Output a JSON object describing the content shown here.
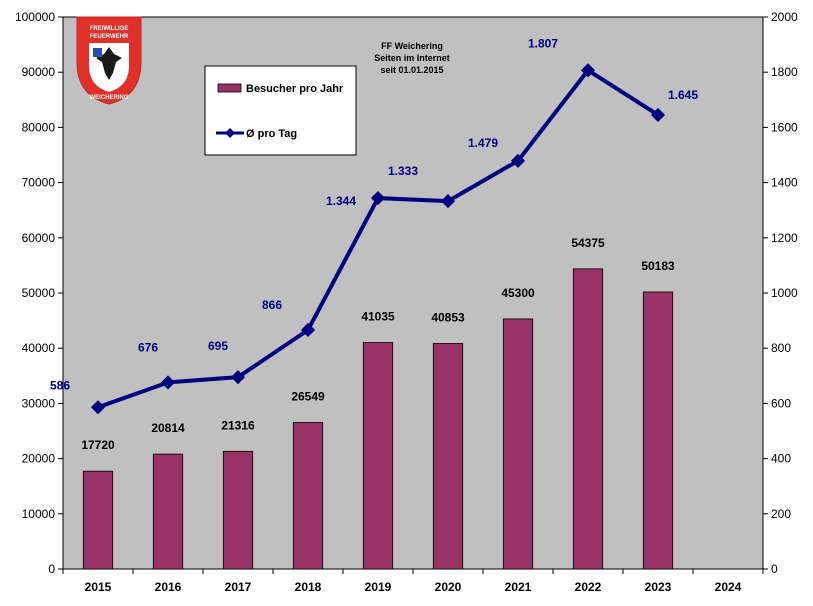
{
  "chart_data": {
    "type": "bar",
    "title_lines": [
      "FF Weichering",
      "Seiten im Internet",
      "seit 01.01.2015"
    ],
    "categories": [
      "2015",
      "2016",
      "2017",
      "2018",
      "2019",
      "2020",
      "2021",
      "2022",
      "2023",
      "2024"
    ],
    "ylim_left": [
      0,
      100000
    ],
    "yticks_left": [
      "0",
      "10000",
      "20000",
      "30000",
      "40000",
      "50000",
      "60000",
      "70000",
      "80000",
      "90000",
      "100000"
    ],
    "ylim_right": [
      0,
      2000
    ],
    "yticks_right": [
      "0",
      "200",
      "400",
      "600",
      "800",
      "1000",
      "1200",
      "1400",
      "1600",
      "1800",
      "2000"
    ],
    "grid": false,
    "legend_position": "top-left",
    "series": [
      {
        "name": "Besucher pro Jahr",
        "type": "bar",
        "axis": "left",
        "color": "#993366",
        "values": [
          17720,
          20814,
          21316,
          26549,
          41035,
          40853,
          45300,
          54375,
          50183,
          null
        ],
        "labels": [
          "17720",
          "20814",
          "21316",
          "26549",
          "41035",
          "40853",
          "45300",
          "54375",
          "50183",
          ""
        ]
      },
      {
        "name": "Ø pro Tag",
        "type": "line",
        "axis": "right",
        "color": "#000080",
        "values": [
          586,
          676,
          695,
          866,
          1344,
          1333,
          1479,
          1807,
          1645,
          null
        ],
        "labels": [
          "586",
          "676",
          "695",
          "866",
          "1.344",
          "1.333",
          "1.479",
          "1.807",
          "1.645",
          ""
        ]
      }
    ]
  },
  "logo": {
    "text_top_1": "FREIWILLIGE",
    "text_top_2": "FEUERWEHR",
    "text_bottom": "WEICHERING"
  },
  "colors": {
    "plot_background": "#c0c0c0",
    "bar": "#993366",
    "line": "#000080",
    "logo_red": "#e0302a"
  }
}
